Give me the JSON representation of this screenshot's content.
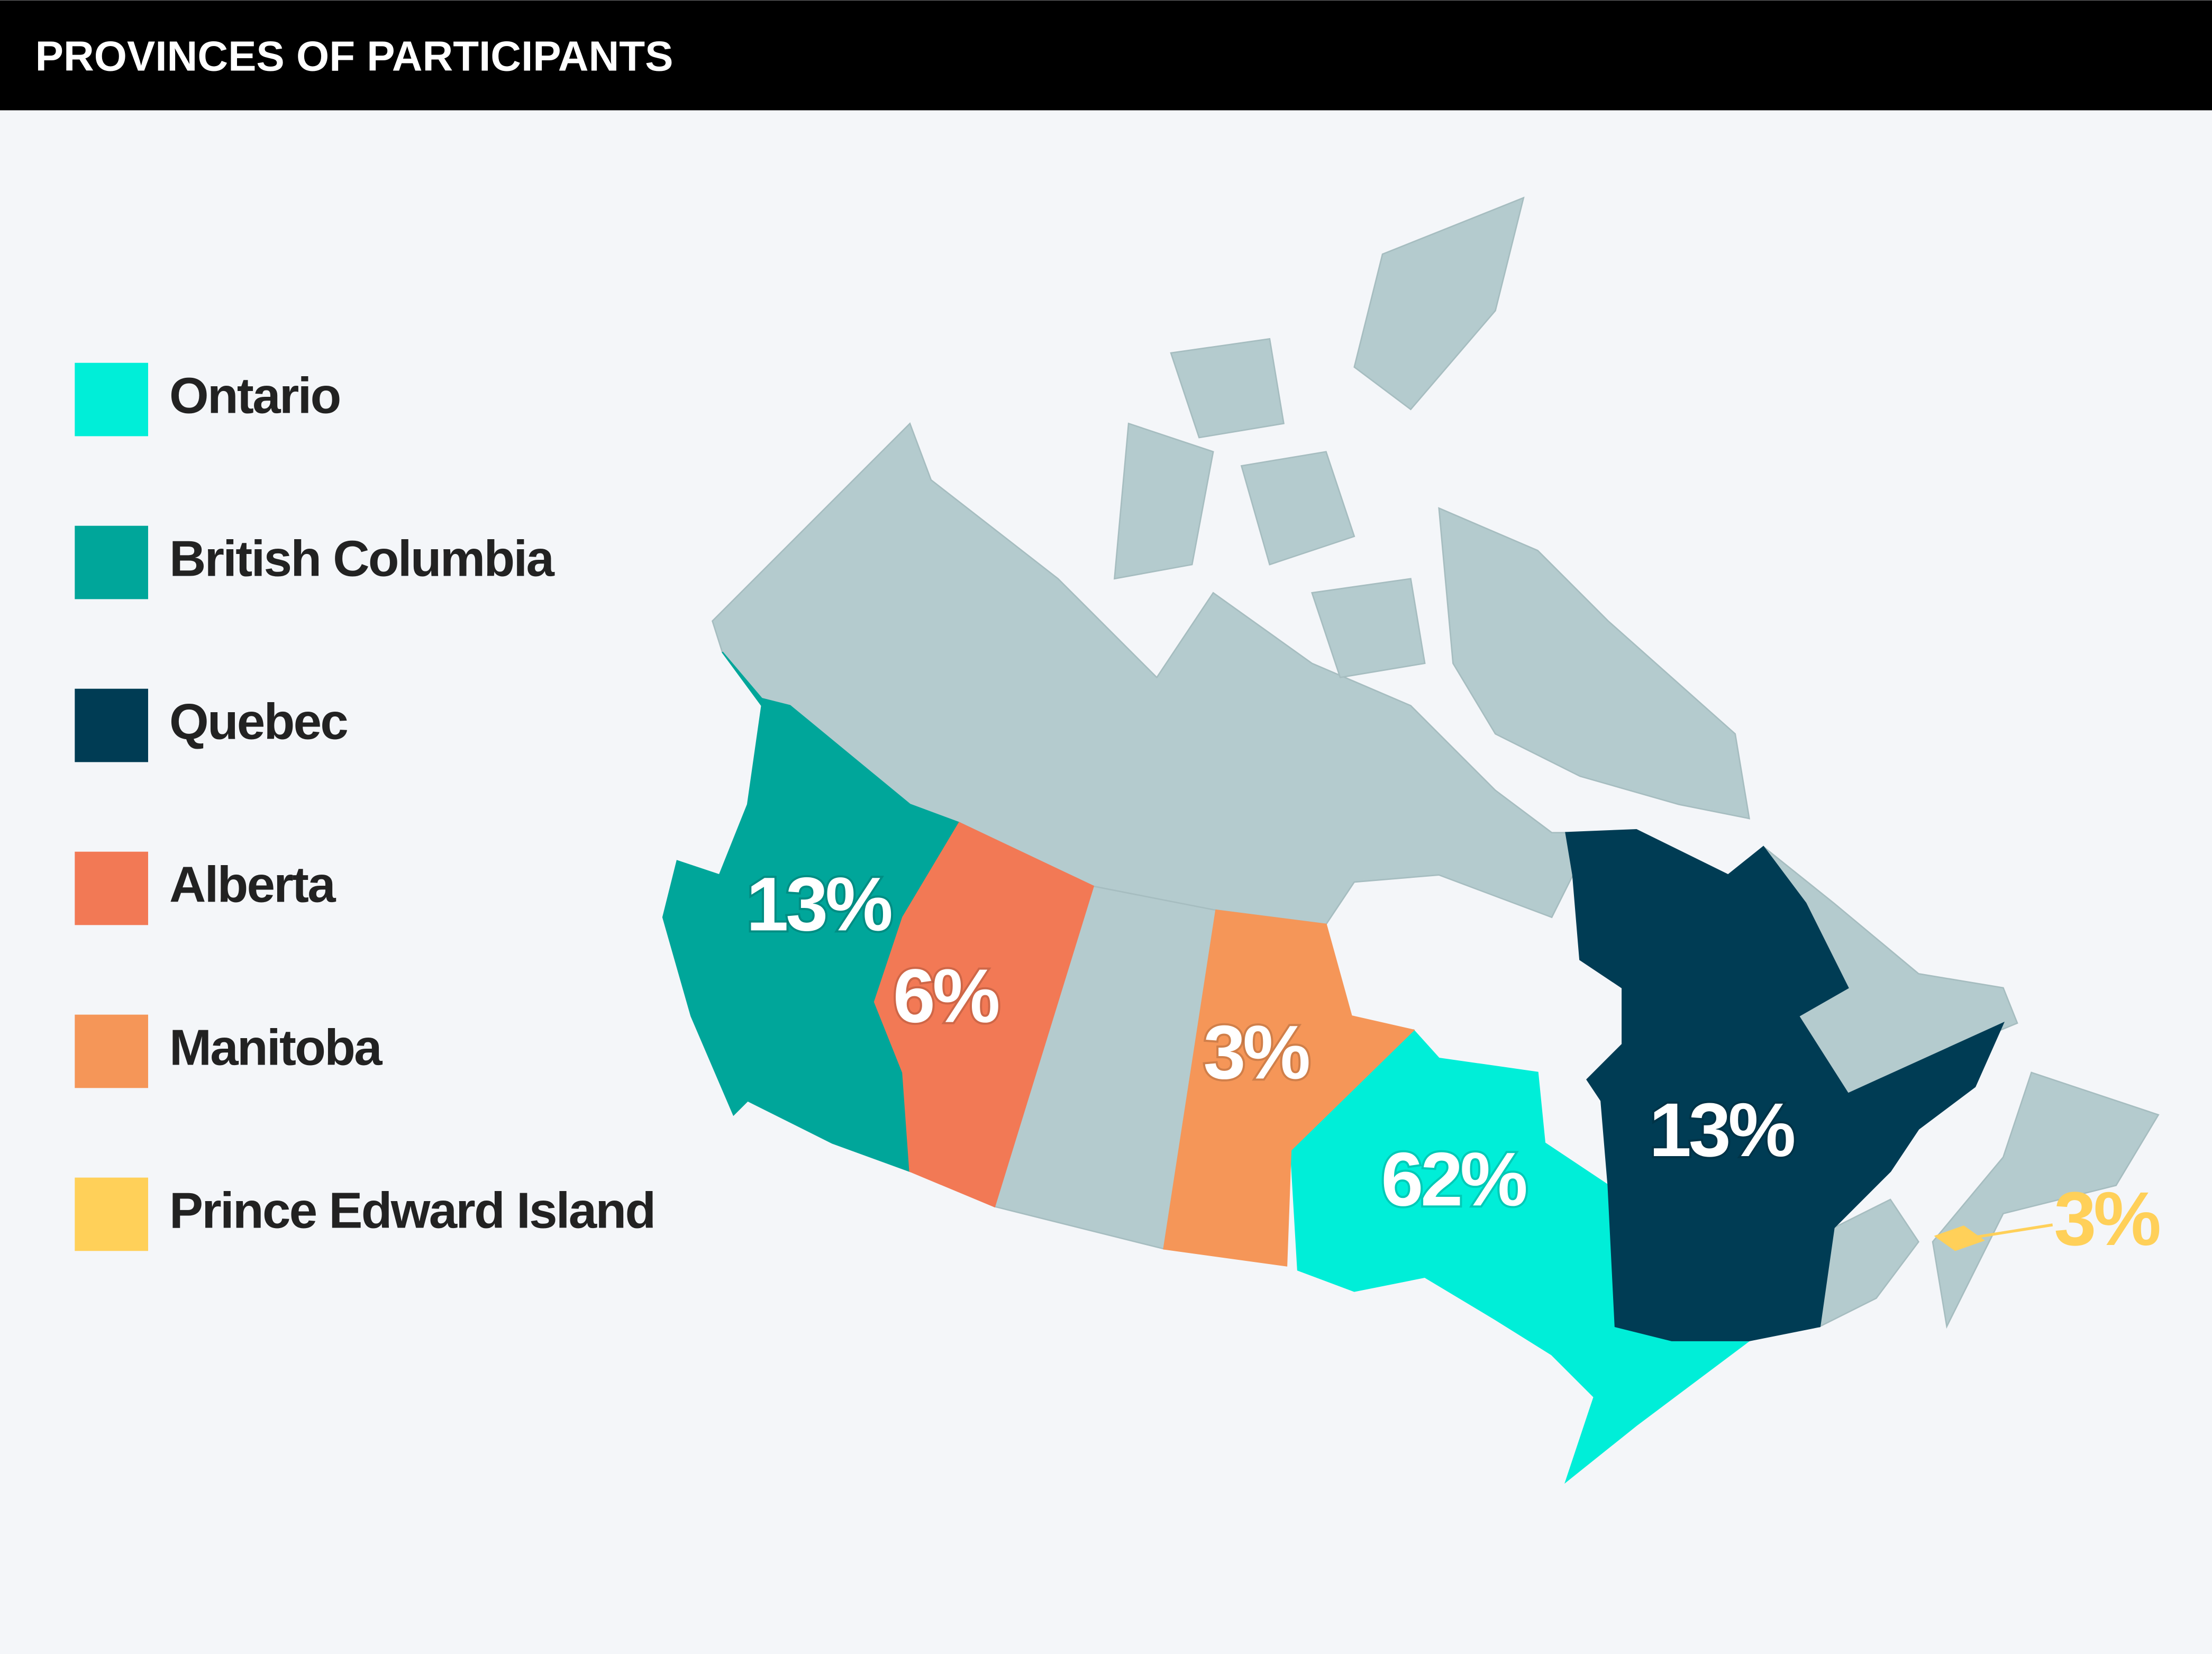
{
  "chart_data": {
    "type": "map",
    "title": "PROVINCES OF PARTICIPANTS",
    "categories": [
      "Ontario",
      "British Columbia",
      "Quebec",
      "Alberta",
      "Manitoba",
      "Prince Edward Island"
    ],
    "values": [
      62,
      13,
      13,
      6,
      3,
      3
    ],
    "value_labels": [
      "62%",
      "13%",
      "13%",
      "6%",
      "3%",
      "3%"
    ],
    "colors": [
      "#00eed8",
      "#00a69a",
      "#003c54",
      "#f27955",
      "#f59658",
      "#ffd059"
    ],
    "base_color": "#b4cbce"
  }
}
